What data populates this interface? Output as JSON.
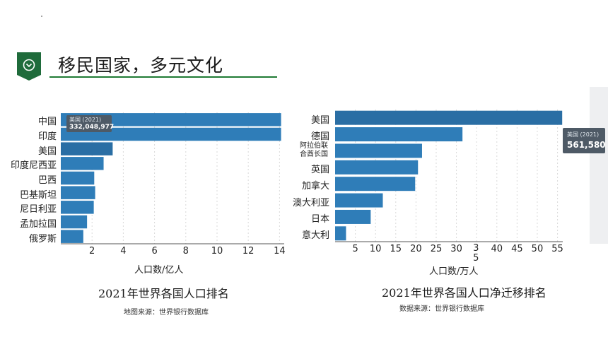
{
  "header": {
    "title": "移民国家，多元文化"
  },
  "chart_data": [
    {
      "type": "bar",
      "orientation": "horizontal",
      "categories": [
        "中国",
        "印度",
        "美国",
        "印度尼西亚",
        "巴西",
        "巴基斯坦",
        "尼日利亚",
        "孟加拉国",
        "俄罗斯"
      ],
      "values": [
        14.1,
        14.1,
        3.32,
        2.74,
        2.14,
        2.2,
        2.11,
        1.68,
        1.44
      ],
      "xlabel": "人口数/亿人",
      "xticks": [
        "2",
        "4",
        "6",
        "8",
        "10",
        "12",
        "14"
      ],
      "xlim": [
        0,
        14.3
      ],
      "caption": "2021年世界各国人口排名",
      "source": "地图来源：世界银行数据库",
      "tooltip": {
        "name": "美国 (2021)",
        "value": "332,048,977"
      },
      "bar_color": "#2f7db8",
      "highlight_color": "#2a6ea4"
    },
    {
      "type": "bar",
      "orientation": "horizontal",
      "categories": [
        "美国",
        "德国",
        "阿拉伯联合酋长国",
        "英国",
        "加拿大",
        "澳大利亚",
        "日本",
        "意大利"
      ],
      "category_lines": [
        [
          "美国"
        ],
        [
          "德国"
        ],
        [
          "阿拉伯联",
          "合酋长国"
        ],
        [
          "英国"
        ],
        [
          "加拿大"
        ],
        [
          "澳大利亚"
        ],
        [
          "日本"
        ],
        [
          "意大利"
        ]
      ],
      "values": [
        56.16,
        31.5,
        21.5,
        20.5,
        19.8,
        11.8,
        8.8,
        2.7
      ],
      "xlabel": "人口数/万人",
      "xticks": [
        "5",
        "10",
        "15",
        "20",
        "25",
        "30",
        "35",
        "40",
        "45",
        "50",
        "55"
      ],
      "xlim": [
        0,
        56.3
      ],
      "caption": "2021年世界各国人口净迁移排名",
      "source": "数据来源：世界银行数据库",
      "tooltip": {
        "name": "美国 (2021)",
        "value": "561,580"
      },
      "bar_color": "#2f7db8",
      "highlight_color": "#2a6ea4"
    }
  ]
}
